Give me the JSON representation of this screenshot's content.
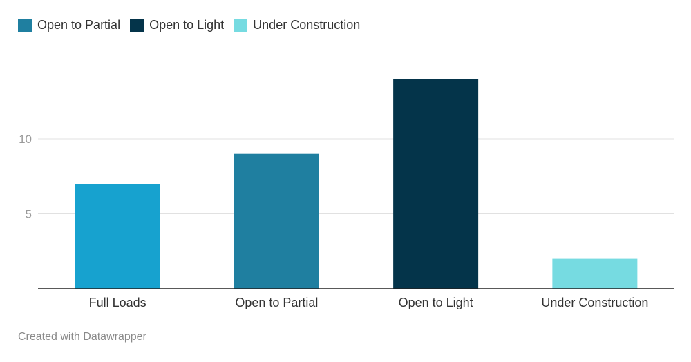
{
  "legend": [
    {
      "label": "Open to Partial",
      "color": "#1f7fa0"
    },
    {
      "label": "Open to Light",
      "color": "#04344a"
    },
    {
      "label": "Under Construction",
      "color": "#76dbe1"
    }
  ],
  "chart_data": {
    "type": "bar",
    "categories": [
      "Full Loads",
      "Open to Partial",
      "Open to Light",
      "Under Construction"
    ],
    "values": [
      7,
      9,
      14,
      2
    ],
    "colors": [
      "#17a2cf",
      "#1f7fa0",
      "#04344a",
      "#76dbe1"
    ],
    "yticks": [
      5,
      10
    ],
    "ylim": [
      0,
      14
    ],
    "grid": true,
    "legend_position": "top-left"
  },
  "footer": {
    "credit": "Created with Datawrapper"
  }
}
